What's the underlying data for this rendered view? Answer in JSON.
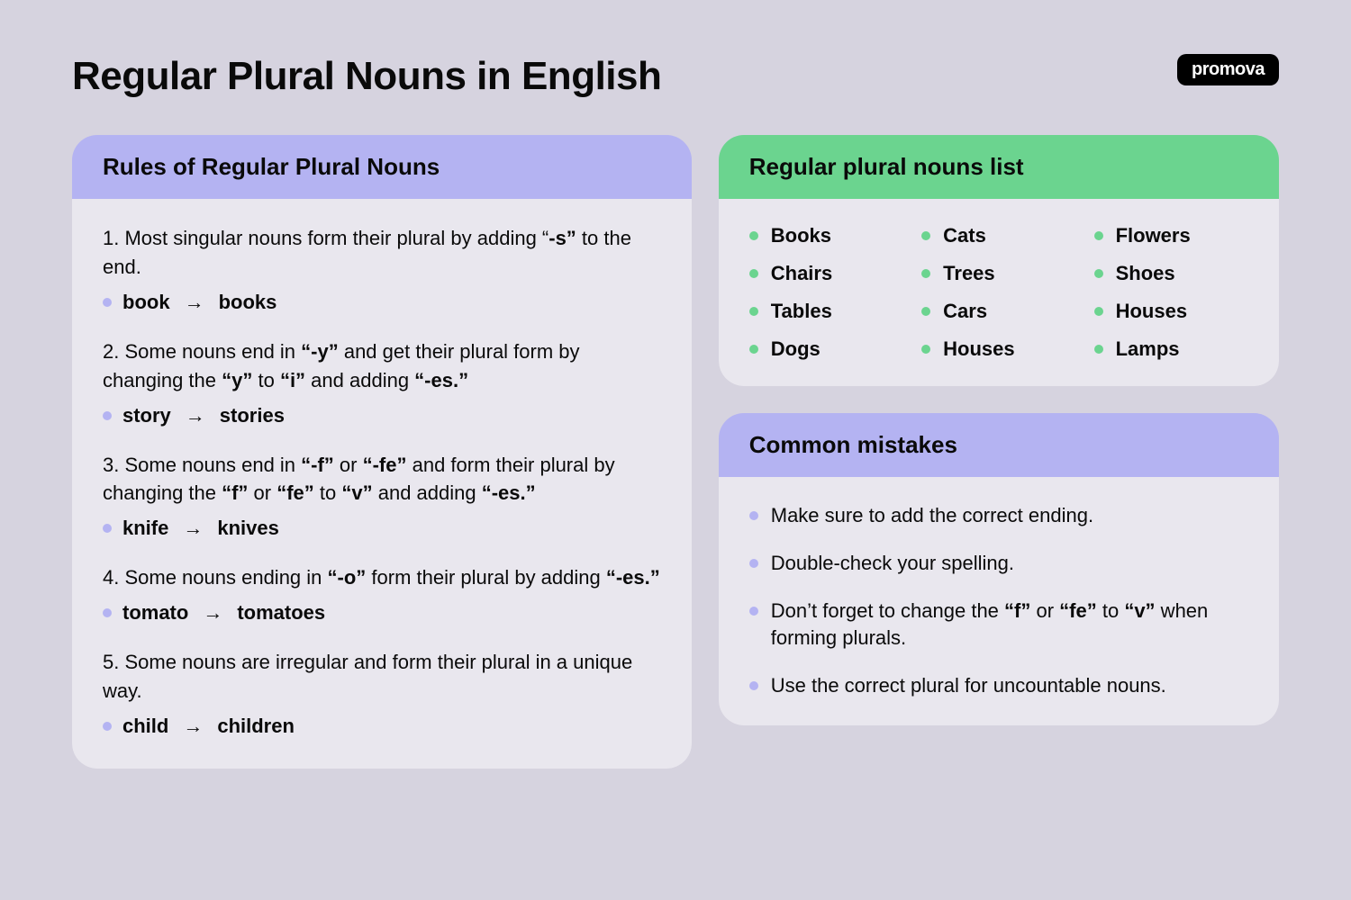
{
  "title": "Regular Plural Nouns in English",
  "logo": "promova",
  "colors": {
    "bg": "#d6d3df",
    "panel_bg": "#e9e7ee",
    "purple": "#b4b3f2",
    "green": "#6bd48f",
    "text": "#0a0a0a"
  },
  "rules": {
    "heading": "Rules of Regular Plural Nouns",
    "items": [
      {
        "text_pre": "1. Most singular nouns form their plural by adding “",
        "bold1": "-s”",
        "text_post": " to the end.",
        "example_from": "book",
        "example_to": "books"
      },
      {
        "text_pre": "2. Some nouns end in ",
        "bold1": "“-y”",
        "text_mid1": " and get their plural form by changing the ",
        "bold2": "“y”",
        "text_mid2": " to ",
        "bold3": "“i”",
        "text_mid3": " and adding ",
        "bold4": "“-es.”",
        "example_from": "story",
        "example_to": "stories"
      },
      {
        "text_pre": "3. Some nouns end in ",
        "bold1": "“-f”",
        "text_mid1": " or ",
        "bold2": "“-fe”",
        "text_mid2": " and form their plural by changing the ",
        "bold3": "“f”",
        "text_mid3": " or ",
        "bold4": "“fe”",
        "text_mid4": " to ",
        "bold5": "“v”",
        "text_mid5": " and adding ",
        "bold6": "“-es.”",
        "example_from": "knife",
        "example_to": "knives"
      },
      {
        "text_pre": "4. Some nouns ending in ",
        "bold1": "“-o”",
        "text_mid1": " form their plural by adding ",
        "bold2": "“-es.”",
        "example_from": "tomato",
        "example_to": "tomatoes"
      },
      {
        "text_pre": "5. Some nouns are irregular and form their plural in a unique way.",
        "example_from": "child",
        "example_to": "children"
      }
    ]
  },
  "nouns": {
    "heading": "Regular plural nouns list",
    "items": [
      "Books",
      "Cats",
      "Flowers",
      "Chairs",
      "Trees",
      "Shoes",
      "Tables",
      "Cars",
      "Houses",
      "Dogs",
      "Houses",
      "Lamps"
    ]
  },
  "mistakes": {
    "heading": "Common mistakes",
    "items": [
      {
        "text": "Make sure to add the correct ending."
      },
      {
        "text": "Double-check your spelling."
      },
      {
        "pre": "Don’t forget to change the ",
        "b1": "“f”",
        "mid1": " or ",
        "b2": "“fe”",
        "mid2": " to ",
        "b3": "“v”",
        "post": " when forming plurals."
      },
      {
        "text": "Use the correct plural for uncountable nouns."
      }
    ]
  }
}
